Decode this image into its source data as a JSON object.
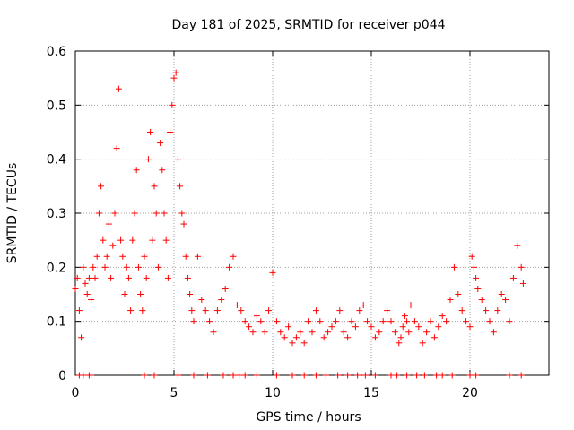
{
  "chart_data": {
    "type": "scatter",
    "title": "Day 181 of 2025, SRMTID for receiver p044",
    "xlabel": "GPS time / hours",
    "ylabel": "SRMTID / TECUs",
    "xlim": [
      0,
      24
    ],
    "ylim": [
      0,
      0.6
    ],
    "xticks": [
      0,
      5,
      10,
      15,
      20
    ],
    "yticks": [
      0,
      0.1,
      0.2,
      0.3,
      0.4,
      0.5,
      0.6
    ],
    "grid": true,
    "marker": "plus",
    "color": "#ff0000",
    "series": [
      {
        "name": "SRMTID",
        "x": [
          0.0,
          0.1,
          0.2,
          0.3,
          0.4,
          0.5,
          0.6,
          0.7,
          0.8,
          0.9,
          1.0,
          1.1,
          1.2,
          1.3,
          1.4,
          1.5,
          1.6,
          1.7,
          1.8,
          1.9,
          2.0,
          2.1,
          2.2,
          2.3,
          2.4,
          2.5,
          2.6,
          2.7,
          2.8,
          2.9,
          3.0,
          3.1,
          3.2,
          3.3,
          3.4,
          3.5,
          3.6,
          3.7,
          3.8,
          3.9,
          4.0,
          4.1,
          4.2,
          4.3,
          4.4,
          4.5,
          4.6,
          4.7,
          4.8,
          4.9,
          5.0,
          5.1,
          5.2,
          5.3,
          5.4,
          5.5,
          5.6,
          5.7,
          5.8,
          5.9,
          6.0,
          6.2,
          6.4,
          6.6,
          6.8,
          7.0,
          7.2,
          7.4,
          7.6,
          7.8,
          8.0,
          8.2,
          8.4,
          8.6,
          8.8,
          9.0,
          9.2,
          9.4,
          9.6,
          9.8,
          10.0,
          10.2,
          10.4,
          10.6,
          10.8,
          11.0,
          11.2,
          11.4,
          11.6,
          11.8,
          12.0,
          12.2,
          12.4,
          12.6,
          12.8,
          13.0,
          13.2,
          13.4,
          13.6,
          13.8,
          14.0,
          14.2,
          14.4,
          14.6,
          14.8,
          15.0,
          15.2,
          15.4,
          15.6,
          15.8,
          16.0,
          16.2,
          16.4,
          16.5,
          16.6,
          16.7,
          16.8,
          16.9,
          17.0,
          17.2,
          17.4,
          17.6,
          17.8,
          18.0,
          18.2,
          18.4,
          18.6,
          18.8,
          19.0,
          19.2,
          19.4,
          19.6,
          19.8,
          20.0,
          20.1,
          20.2,
          20.3,
          20.4,
          20.6,
          20.8,
          21.0,
          21.2,
          21.4,
          21.6,
          21.8,
          22.0,
          22.2,
          22.4,
          22.6,
          22.7
        ],
        "y": [
          0.16,
          0.18,
          0.12,
          0.07,
          0.2,
          0.17,
          0.15,
          0.18,
          0.14,
          0.2,
          0.18,
          0.22,
          0.3,
          0.35,
          0.25,
          0.2,
          0.22,
          0.28,
          0.18,
          0.24,
          0.3,
          0.42,
          0.53,
          0.25,
          0.22,
          0.15,
          0.2,
          0.18,
          0.12,
          0.25,
          0.3,
          0.38,
          0.2,
          0.15,
          0.12,
          0.22,
          0.18,
          0.4,
          0.45,
          0.25,
          0.35,
          0.3,
          0.2,
          0.43,
          0.38,
          0.3,
          0.25,
          0.18,
          0.45,
          0.5,
          0.55,
          0.56,
          0.4,
          0.35,
          0.3,
          0.28,
          0.22,
          0.18,
          0.15,
          0.12,
          0.1,
          0.22,
          0.14,
          0.12,
          0.1,
          0.08,
          0.12,
          0.14,
          0.16,
          0.2,
          0.22,
          0.13,
          0.12,
          0.1,
          0.09,
          0.08,
          0.11,
          0.1,
          0.08,
          0.12,
          0.19,
          0.1,
          0.08,
          0.07,
          0.09,
          0.06,
          0.07,
          0.08,
          0.06,
          0.1,
          0.08,
          0.12,
          0.1,
          0.07,
          0.08,
          0.09,
          0.1,
          0.12,
          0.08,
          0.07,
          0.1,
          0.09,
          0.12,
          0.13,
          0.1,
          0.09,
          0.07,
          0.08,
          0.1,
          0.12,
          0.1,
          0.08,
          0.06,
          0.07,
          0.09,
          0.11,
          0.1,
          0.08,
          0.13,
          0.1,
          0.09,
          0.06,
          0.08,
          0.1,
          0.07,
          0.09,
          0.11,
          0.1,
          0.14,
          0.2,
          0.15,
          0.12,
          0.1,
          0.09,
          0.22,
          0.2,
          0.18,
          0.16,
          0.14,
          0.12,
          0.1,
          0.08,
          0.12,
          0.15,
          0.14,
          0.1,
          0.18,
          0.24,
          0.2,
          0.17
        ]
      }
    ],
    "zero_markers_x": [
      0.2,
      0.4,
      0.7,
      0.8,
      3.5,
      4.0,
      5.2,
      6.0,
      6.7,
      7.5,
      8.0,
      8.3,
      8.6,
      9.2,
      10.2,
      11.0,
      11.6,
      12.2,
      12.7,
      13.3,
      13.8,
      14.3,
      14.7,
      15.2,
      16.0,
      16.3,
      16.8,
      17.3,
      17.7,
      18.3,
      18.6,
      19.1,
      20.0,
      20.3,
      22.0,
      22.6
    ]
  }
}
